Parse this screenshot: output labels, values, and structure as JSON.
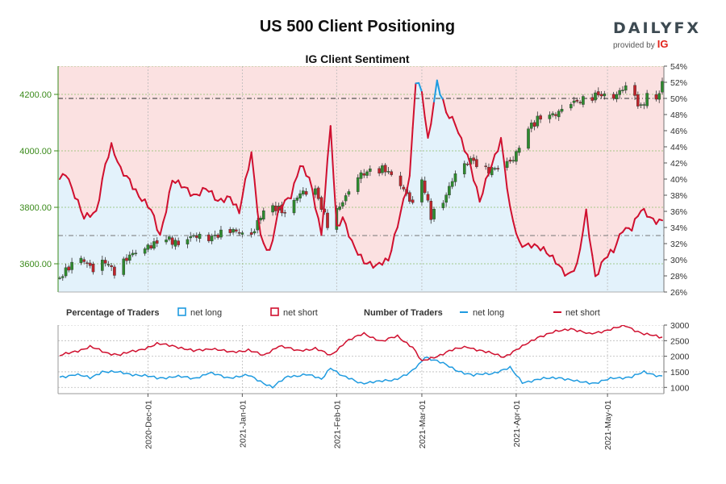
{
  "header": {
    "title": "US 500 Client Positioning",
    "subtitle": "IG Client Sentiment",
    "logo_word": "DAILYFX",
    "logo_sub": "provided by",
    "logo_brand": "IG"
  },
  "legend": {
    "pct_heading": "Percentage of Traders",
    "num_heading": "Number of Traders",
    "net_long": "net long",
    "net_short": "net short"
  },
  "colors": {
    "net_long": "#1f9be0",
    "net_short": "#d0102f",
    "short_fill": "#fbe1e1",
    "long_fill": "#e3f2fb",
    "candle_up": "#2e8b2e",
    "candle_down": "#c0242b",
    "price_axis": "#3a8a1a"
  },
  "chart_data": [
    {
      "type": "candlestick",
      "title": "IG Client Sentiment",
      "y_left_label": "",
      "y_left_ticks": [
        "3600.00",
        "3800.00",
        "4000.00",
        "4200.00"
      ],
      "y_left_range": [
        3500,
        4300
      ],
      "y_right_ticks": [
        "26%",
        "28%",
        "30%",
        "32%",
        "34%",
        "36%",
        "38%",
        "40%",
        "42%",
        "44%",
        "46%",
        "48%",
        "50%",
        "52%",
        "54%"
      ],
      "y_right_range": [
        26,
        54
      ],
      "x_ticks": [
        "2020-Dec-01",
        "2021-Jan-01",
        "2021-Feb-01",
        "2021-Mar-01",
        "2021-Apr-01",
        "2021-May-01"
      ],
      "reference_lines": {
        "price": 3700,
        "pct": 50
      },
      "price_anchors": [
        [
          "2020-11-02",
          3550
        ],
        [
          "2020-11-06",
          3600
        ],
        [
          "2020-11-09",
          3620
        ],
        [
          "2020-11-13",
          3580
        ],
        [
          "2020-11-17",
          3610
        ],
        [
          "2020-11-20",
          3570
        ],
        [
          "2020-11-25",
          3630
        ],
        [
          "2020-12-01",
          3660
        ],
        [
          "2020-12-07",
          3690
        ],
        [
          "2020-12-11",
          3670
        ],
        [
          "2020-12-16",
          3700
        ],
        [
          "2020-12-21",
          3690
        ],
        [
          "2020-12-28",
          3720
        ],
        [
          "2021-01-04",
          3700
        ],
        [
          "2021-01-08",
          3790
        ],
        [
          "2021-01-12",
          3800
        ],
        [
          "2021-01-15",
          3780
        ],
        [
          "2021-01-20",
          3850
        ],
        [
          "2021-01-25",
          3860
        ],
        [
          "2021-01-29",
          3740
        ],
        [
          "2021-02-03",
          3820
        ],
        [
          "2021-02-08",
          3910
        ],
        [
          "2021-02-12",
          3930
        ],
        [
          "2021-02-17",
          3935
        ],
        [
          "2021-02-22",
          3880
        ],
        [
          "2021-02-26",
          3810
        ],
        [
          "2021-03-01",
          3900
        ],
        [
          "2021-03-04",
          3770
        ],
        [
          "2021-03-08",
          3820
        ],
        [
          "2021-03-12",
          3920
        ],
        [
          "2021-03-17",
          3970
        ],
        [
          "2021-03-22",
          3930
        ],
        [
          "2021-03-26",
          3940
        ],
        [
          "2021-03-31",
          3970
        ],
        [
          "2021-04-05",
          4080
        ],
        [
          "2021-04-09",
          4120
        ],
        [
          "2021-04-14",
          4130
        ],
        [
          "2021-04-19",
          4170
        ],
        [
          "2021-04-23",
          4180
        ],
        [
          "2021-04-28",
          4200
        ],
        [
          "2021-05-03",
          4190
        ],
        [
          "2021-05-07",
          4230
        ],
        [
          "2021-05-10",
          4190
        ],
        [
          "2021-05-12",
          4150
        ],
        [
          "2021-05-14",
          4200
        ],
        [
          "2021-05-17",
          4180
        ],
        [
          "2021-05-19",
          4240
        ]
      ],
      "net_long_pct_anchors": [
        [
          "2020-11-02",
          40
        ],
        [
          "2020-11-04",
          41
        ],
        [
          "2020-11-07",
          38
        ],
        [
          "2020-11-10",
          35
        ],
        [
          "2020-11-14",
          36
        ],
        [
          "2020-11-17",
          42
        ],
        [
          "2020-11-19",
          44
        ],
        [
          "2020-11-22",
          41
        ],
        [
          "2020-11-25",
          40
        ],
        [
          "2020-11-28",
          38
        ],
        [
          "2020-12-02",
          36
        ],
        [
          "2020-12-05",
          33
        ],
        [
          "2020-12-09",
          40
        ],
        [
          "2020-12-12",
          39
        ],
        [
          "2020-12-16",
          38
        ],
        [
          "2020-12-20",
          39
        ],
        [
          "2020-12-24",
          37
        ],
        [
          "2020-12-28",
          38
        ],
        [
          "2020-12-31",
          36
        ],
        [
          "2021-01-04",
          43
        ],
        [
          "2021-01-07",
          33
        ],
        [
          "2021-01-10",
          31
        ],
        [
          "2021-01-13",
          36
        ],
        [
          "2021-01-17",
          38
        ],
        [
          "2021-01-20",
          42
        ],
        [
          "2021-01-23",
          40
        ],
        [
          "2021-01-27",
          33
        ],
        [
          "2021-01-30",
          47
        ],
        [
          "2021-02-01",
          34
        ],
        [
          "2021-02-03",
          35
        ],
        [
          "2021-02-06",
          32
        ],
        [
          "2021-02-10",
          30
        ],
        [
          "2021-02-14",
          29
        ],
        [
          "2021-02-18",
          30
        ],
        [
          "2021-02-22",
          36
        ],
        [
          "2021-02-25",
          40
        ],
        [
          "2021-02-27",
          52
        ],
        [
          "2021-03-01",
          51
        ],
        [
          "2021-03-03",
          45
        ],
        [
          "2021-03-06",
          52
        ],
        [
          "2021-03-09",
          48
        ],
        [
          "2021-03-12",
          47
        ],
        [
          "2021-03-16",
          43
        ],
        [
          "2021-03-20",
          37
        ],
        [
          "2021-03-23",
          41
        ],
        [
          "2021-03-27",
          45
        ],
        [
          "2021-03-30",
          36
        ],
        [
          "2021-04-02",
          32
        ],
        [
          "2021-04-06",
          32
        ],
        [
          "2021-04-10",
          31
        ],
        [
          "2021-04-14",
          30
        ],
        [
          "2021-04-18",
          28
        ],
        [
          "2021-04-21",
          29
        ],
        [
          "2021-04-24",
          36
        ],
        [
          "2021-04-27",
          28
        ],
        [
          "2021-04-30",
          30
        ],
        [
          "2021-05-03",
          31
        ],
        [
          "2021-05-06",
          34
        ],
        [
          "2021-05-09",
          34
        ],
        [
          "2021-05-12",
          36
        ],
        [
          "2021-05-16",
          35
        ]
      ]
    },
    {
      "type": "line",
      "title": "Number of Traders",
      "y_ticks": [
        "1000",
        "1500",
        "2000",
        "2500",
        "3000"
      ],
      "y_range": [
        800,
        3000
      ],
      "series": [
        {
          "name": "net long",
          "anchors": [
            [
              "2020-11-02",
              1330
            ],
            [
              "2020-11-07",
              1420
            ],
            [
              "2020-11-12",
              1300
            ],
            [
              "2020-11-16",
              1520
            ],
            [
              "2020-11-22",
              1470
            ],
            [
              "2020-11-28",
              1400
            ],
            [
              "2020-12-04",
              1300
            ],
            [
              "2020-12-10",
              1350
            ],
            [
              "2020-12-16",
              1290
            ],
            [
              "2020-12-21",
              1460
            ],
            [
              "2020-12-27",
              1320
            ],
            [
              "2021-01-03",
              1380
            ],
            [
              "2021-01-07",
              1200
            ],
            [
              "2021-01-11",
              1010
            ],
            [
              "2021-01-16",
              1350
            ],
            [
              "2021-01-22",
              1420
            ],
            [
              "2021-01-27",
              1260
            ],
            [
              "2021-01-30",
              1650
            ],
            [
              "2021-02-03",
              1350
            ],
            [
              "2021-02-09",
              1150
            ],
            [
              "2021-02-15",
              1180
            ],
            [
              "2021-02-20",
              1260
            ],
            [
              "2021-02-25",
              1450
            ],
            [
              "2021-02-28",
              1720
            ],
            [
              "2021-03-02",
              1990
            ],
            [
              "2021-03-06",
              1850
            ],
            [
              "2021-03-12",
              1570
            ],
            [
              "2021-03-18",
              1380
            ],
            [
              "2021-03-24",
              1460
            ],
            [
              "2021-03-30",
              1620
            ],
            [
              "2021-04-03",
              1170
            ],
            [
              "2021-04-09",
              1260
            ],
            [
              "2021-04-15",
              1330
            ],
            [
              "2021-04-21",
              1180
            ],
            [
              "2021-04-27",
              1150
            ],
            [
              "2021-05-03",
              1290
            ],
            [
              "2021-05-09",
              1350
            ],
            [
              "2021-05-13",
              1480
            ],
            [
              "2021-05-18",
              1380
            ]
          ]
        },
        {
          "name": "net short",
          "anchors": [
            [
              "2020-11-02",
              2010
            ],
            [
              "2020-11-07",
              2160
            ],
            [
              "2020-11-12",
              2300
            ],
            [
              "2020-11-17",
              2120
            ],
            [
              "2020-11-22",
              2050
            ],
            [
              "2020-11-28",
              2200
            ],
            [
              "2020-12-04",
              2390
            ],
            [
              "2020-12-10",
              2330
            ],
            [
              "2020-12-16",
              2160
            ],
            [
              "2020-12-22",
              2260
            ],
            [
              "2020-12-28",
              2120
            ],
            [
              "2021-01-03",
              2210
            ],
            [
              "2021-01-08",
              2010
            ],
            [
              "2021-01-13",
              2350
            ],
            [
              "2021-01-19",
              2170
            ],
            [
              "2021-01-25",
              2260
            ],
            [
              "2021-01-30",
              2010
            ],
            [
              "2021-02-04",
              2480
            ],
            [
              "2021-02-10",
              2720
            ],
            [
              "2021-02-16",
              2480
            ],
            [
              "2021-02-21",
              2640
            ],
            [
              "2021-02-26",
              2300
            ],
            [
              "2021-03-01",
              1820
            ],
            [
              "2021-03-05",
              1970
            ],
            [
              "2021-03-10",
              2170
            ],
            [
              "2021-03-16",
              2310
            ],
            [
              "2021-03-22",
              2130
            ],
            [
              "2021-03-28",
              1990
            ],
            [
              "2021-04-03",
              2300
            ],
            [
              "2021-04-08",
              2620
            ],
            [
              "2021-04-14",
              2780
            ],
            [
              "2021-04-19",
              2900
            ],
            [
              "2021-04-25",
              2700
            ],
            [
              "2021-05-01",
              2850
            ],
            [
              "2021-05-07",
              2970
            ],
            [
              "2021-05-13",
              2720
            ],
            [
              "2021-05-18",
              2610
            ]
          ]
        }
      ]
    }
  ]
}
